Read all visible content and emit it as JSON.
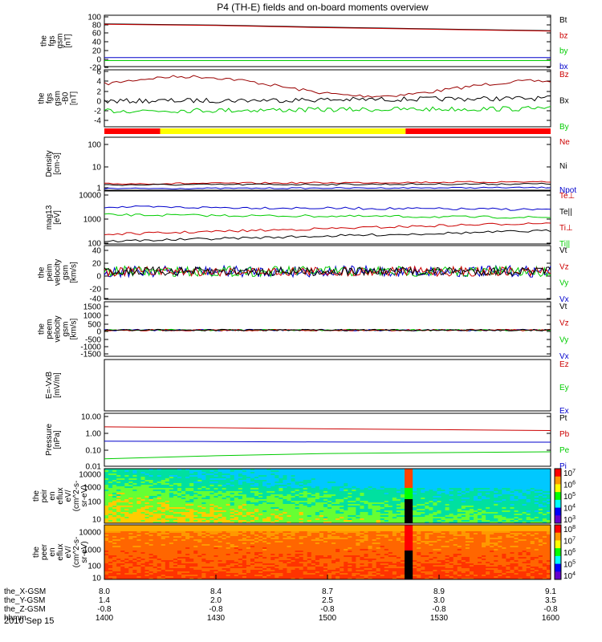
{
  "title": "P4 (TH-E) fields and on-board moments overview",
  "date": "2010 Sep 15",
  "colors": {
    "black": "#000000",
    "red": "#cc0000",
    "green": "#00cc00",
    "blue": "#0000cc",
    "darkred": "#990000",
    "yellow": "#ffff00",
    "modebar_red": "#ff0000"
  },
  "panels": [
    {
      "id": "fgs-gsm",
      "ylabel": [
        "the",
        "fgs",
        "gsm",
        "[nT]"
      ],
      "ticks": [
        "100",
        "80",
        "60",
        "40",
        "20",
        "0",
        "-20"
      ],
      "legend": [
        {
          "text": "Bt",
          "color": "black"
        },
        {
          "text": "bz",
          "color": "red"
        },
        {
          "text": "by",
          "color": "green"
        },
        {
          "text": "bx",
          "color": "blue"
        }
      ]
    },
    {
      "id": "fgs-dsl",
      "ylabel": [
        "the",
        "fgs",
        "gsm",
        "-B0",
        "[nT]"
      ],
      "ticks": [
        "6",
        "4",
        "2",
        "0",
        "-2",
        "-4"
      ],
      "legend": [
        {
          "text": "Bz",
          "color": "red"
        },
        {
          "text": "Bx",
          "color": "black"
        },
        {
          "text": "By",
          "color": "green"
        }
      ]
    },
    {
      "id": "density",
      "ylabel": [
        "Density",
        "[cm-3]"
      ],
      "ticks": [
        "100",
        "10",
        "1"
      ],
      "legend": [
        {
          "text": "Ne",
          "color": "red"
        },
        {
          "text": "Ni",
          "color": "black"
        },
        {
          "text": "Npot",
          "color": "blue"
        }
      ]
    },
    {
      "id": "temperature",
      "ylabel": [
        "mag13",
        "[eV]"
      ],
      "ticks": [
        "10000",
        "1000",
        "100"
      ],
      "legend": [
        {
          "text": "Te⊥",
          "color": "red"
        },
        {
          "text": "Te||",
          "color": "black"
        },
        {
          "text": "Ti⊥",
          "color": "red"
        },
        {
          "text": "Ti||",
          "color": "green"
        }
      ]
    },
    {
      "id": "peim-velocity",
      "ylabel": [
        "the",
        "peim",
        "velocity",
        "gsm",
        "[km/s]"
      ],
      "ticks": [
        "40",
        "20",
        "0",
        "-20",
        "-40"
      ],
      "legend": [
        {
          "text": "Vt",
          "color": "black"
        },
        {
          "text": "Vz",
          "color": "red"
        },
        {
          "text": "Vy",
          "color": "green"
        },
        {
          "text": "Vx",
          "color": "blue"
        }
      ]
    },
    {
      "id": "peem-velocity",
      "ylabel": [
        "the",
        "peem",
        "velocity",
        "gsm",
        "[km/s]"
      ],
      "ticks": [
        "1500",
        "1000",
        "500",
        "0",
        "-500",
        "-1000",
        "-1500"
      ],
      "legend": [
        {
          "text": "Vt",
          "color": "black"
        },
        {
          "text": "Vz",
          "color": "red"
        },
        {
          "text": "Vy",
          "color": "green"
        },
        {
          "text": "Vx",
          "color": "blue"
        }
      ]
    },
    {
      "id": "efield",
      "ylabel": [
        "E=-VxB",
        "[mV/m]"
      ],
      "ticks": [],
      "legend": [
        {
          "text": "Ez",
          "color": "red"
        },
        {
          "text": "Ey",
          "color": "green"
        },
        {
          "text": "Ex",
          "color": "blue"
        }
      ]
    },
    {
      "id": "pressure",
      "ylabel": [
        "Pressure",
        "[nPa]"
      ],
      "ticks": [
        "10.00",
        "1.00",
        "0.10",
        "0.01"
      ],
      "legend": [
        {
          "text": "Pt",
          "color": "black"
        },
        {
          "text": "Pb",
          "color": "red"
        },
        {
          "text": "Pe",
          "color": "green"
        },
        {
          "text": "Pi",
          "color": "blue"
        }
      ]
    },
    {
      "id": "peir-spec",
      "ylabel": [
        "the",
        "peir",
        "en",
        "eflux",
        "eV/",
        "(cm^2-s-",
        "sr-eV)"
      ],
      "ticks": [
        "10000",
        "1000",
        "100",
        "10"
      ],
      "colorbar": [
        "10^7",
        "10^6",
        "10^5",
        "10^4",
        "10^3"
      ]
    },
    {
      "id": "peer-spec",
      "ylabel": [
        "the",
        "peer",
        "en",
        "eflux",
        "eV/",
        "(cm^2-s-",
        "sr-eV)"
      ],
      "ticks": [
        "10000",
        "1000",
        "100",
        "10"
      ],
      "colorbar": [
        "10^8",
        "10^7",
        "10^6",
        "10^5",
        "10^4"
      ]
    }
  ],
  "time_axis": {
    "rows": [
      {
        "label": "the_X-GSM",
        "values": [
          "8.0",
          "8.4",
          "8.7",
          "8.9",
          "9.1"
        ]
      },
      {
        "label": "the_Y-GSM",
        "values": [
          "1.4",
          "2.0",
          "2.5",
          "3.0",
          "3.5"
        ]
      },
      {
        "label": "the_Z-GSM",
        "values": [
          "-0.8",
          "-0.8",
          "-0.8",
          "-0.8",
          "-0.8"
        ]
      },
      {
        "label": "hhmm",
        "values": [
          "1400",
          "1430",
          "1500",
          "1530",
          "1600"
        ]
      }
    ]
  },
  "chart_data": {
    "type": "line",
    "x_unit": "hhmm",
    "x_range": [
      "1400",
      "1600"
    ],
    "mode_bar": [
      {
        "from": "1400",
        "to": "1415",
        "color": "modebar_red"
      },
      {
        "from": "1415",
        "to": "1521",
        "color": "yellow"
      },
      {
        "from": "1521",
        "to": "1600",
        "color": "modebar_red"
      }
    ],
    "series": {
      "fgs": [
        {
          "name": "Bt",
          "color": "black",
          "x": [
            "1400",
            "1430",
            "1500",
            "1530",
            "1600"
          ],
          "values": [
            80,
            77,
            72,
            68,
            64
          ]
        },
        {
          "name": "bz",
          "color": "red",
          "x": [
            "1400",
            "1430",
            "1500",
            "1530",
            "1600"
          ],
          "values": [
            79,
            76,
            71,
            67,
            63
          ]
        },
        {
          "name": "by",
          "color": "green",
          "x": [
            "1400",
            "1430",
            "1500",
            "1530",
            "1600"
          ],
          "values": [
            -6,
            -6,
            -6,
            -6,
            -6
          ]
        },
        {
          "name": "bx",
          "color": "blue",
          "x": [
            "1400",
            "1430",
            "1500",
            "1530",
            "1600"
          ],
          "values": [
            1,
            1,
            1,
            1,
            1
          ]
        }
      ],
      "pressure": [
        {
          "name": "Pb",
          "color": "red",
          "x": [
            "1400",
            "1430",
            "1500",
            "1530",
            "1600"
          ],
          "values": [
            2.6,
            2.3,
            2.0,
            1.8,
            1.6
          ]
        },
        {
          "name": "Pi",
          "color": "blue",
          "x": [
            "1400",
            "1430",
            "1500",
            "1530",
            "1600"
          ],
          "values": [
            0.4,
            0.38,
            0.36,
            0.35,
            0.35
          ]
        },
        {
          "name": "Pe",
          "color": "green",
          "x": [
            "1400",
            "1430",
            "1500",
            "1530",
            "1600"
          ],
          "values": [
            0.04,
            0.06,
            0.08,
            0.09,
            0.1
          ]
        }
      ]
    }
  }
}
